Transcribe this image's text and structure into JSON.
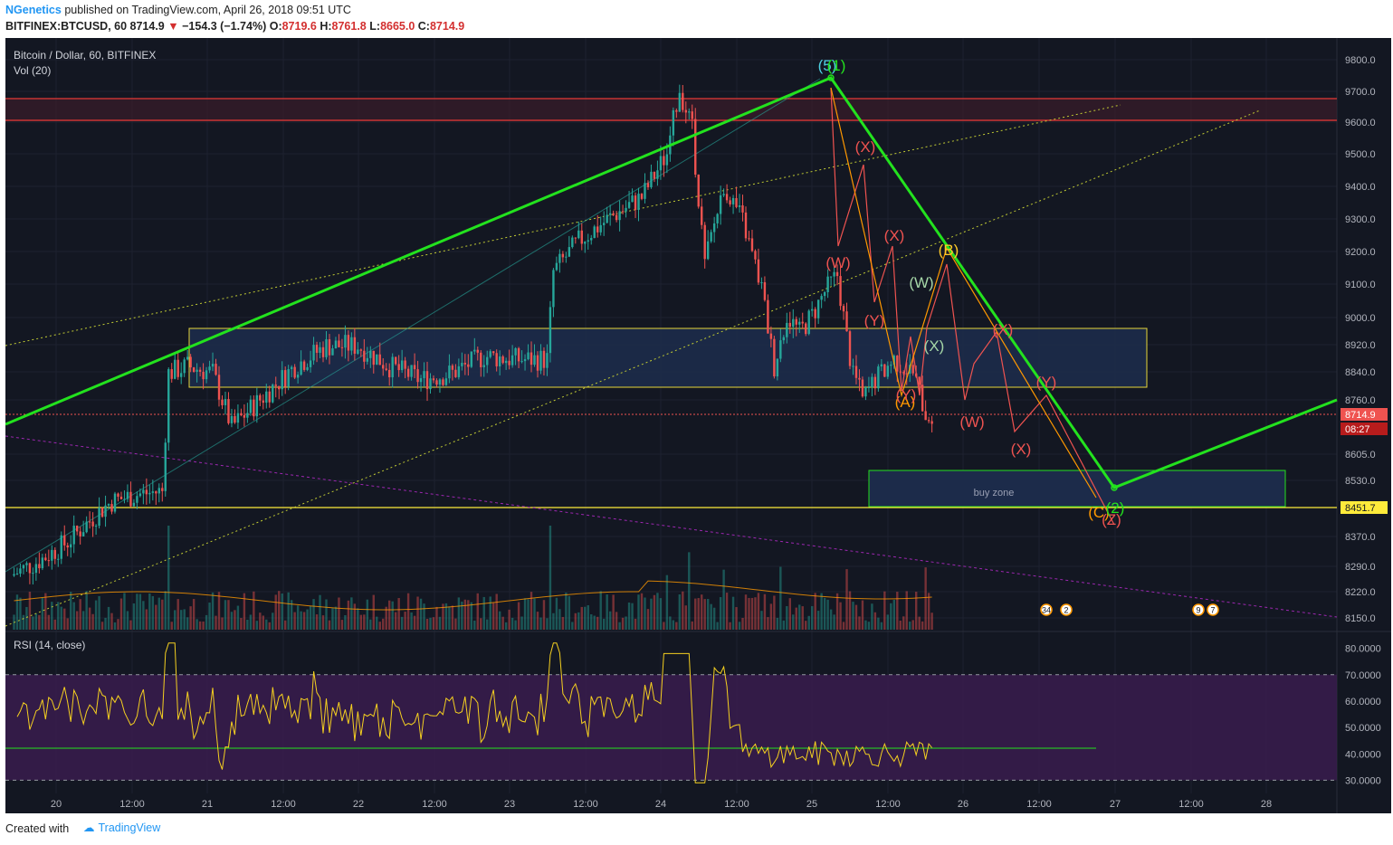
{
  "header": {
    "author": "NGenetics",
    "published": "published on TradingView.com, April 26, 2018 09:51 UTC",
    "symbol": "BITFINEX:BTCUSD, 60",
    "price": "8714.9",
    "change": "−154.3 (−1.74%)",
    "o_label": "O:",
    "o": "8719.6",
    "h_label": "H:",
    "h": "8761.8",
    "l_label": "L:",
    "l": "8665.0",
    "c_label": "C:",
    "c": "8714.9"
  },
  "footer": {
    "created_with": "Created with",
    "brand": "TradingView"
  },
  "colors": {
    "background": "#131722",
    "up": "#26a69a",
    "down": "#ef5350",
    "trendline": "#23e21e",
    "zone_border": "#ffeb3b",
    "zone_fill": "#1c2b4a",
    "resistance": "#e53935",
    "rsi": "#f5d020",
    "rsi_band": "#3a1c4e",
    "volume_ma": "#ff9800"
  },
  "chart_data": {
    "type": "candlestick",
    "title": "Bitcoin / Dollar, 60, BITFINEX",
    "volume_label": "Vol (20)",
    "rsi_label": "RSI (14, close)",
    "price_ylim": [
      8120,
      9850
    ],
    "price_ticks": [
      "9800.0",
      "9700.0",
      "9600.0",
      "9500.0",
      "9400.0",
      "9300.0",
      "9200.0",
      "9100.0",
      "9000.0",
      "8920.0",
      "8840.0",
      "8760.0",
      "8605.0",
      "8530.0",
      "8370.0",
      "8290.0",
      "8220.0",
      "8150.0"
    ],
    "current_price_label": "8714.9",
    "countdown_label": "08:27",
    "support_label": "8451.7",
    "rsi_ylim": [
      25,
      85
    ],
    "rsi_ticks": [
      "80.0000",
      "70.0000",
      "60.0000",
      "50.0000",
      "40.0000",
      "30.0000"
    ],
    "x_ticks": [
      "20",
      "12:00",
      "21",
      "12:00",
      "22",
      "12:00",
      "23",
      "12:00",
      "24",
      "12:00",
      "25",
      "12:00",
      "26",
      "12:00",
      "27",
      "12:00",
      "28"
    ],
    "annotations": {
      "buy_zone": "buy zone",
      "wave_labels": [
        {
          "text": "(5)",
          "color": "#4dd0e1"
        },
        {
          "text": "(1)",
          "color": "#23e21e"
        },
        {
          "text": "(X)",
          "color": "#ef5350"
        },
        {
          "text": "(W)",
          "color": "#ef5350"
        },
        {
          "text": "(X)",
          "color": "#ef5350"
        },
        {
          "text": "(Y)",
          "color": "#ef5350"
        },
        {
          "text": "(W)",
          "color": "#a5d6a7"
        },
        {
          "text": "(X)",
          "color": "#a5d6a7"
        },
        {
          "text": "(A)",
          "color": "#ff9800"
        },
        {
          "text": "(Y)",
          "color": "#ef5350"
        },
        {
          "text": "(B)",
          "color": "#ffca28"
        },
        {
          "text": "(X)",
          "color": "#ef5350"
        },
        {
          "text": "(W)",
          "color": "#ef5350"
        },
        {
          "text": "(X)",
          "color": "#ef5350"
        },
        {
          "text": "(Y)",
          "color": "#ef5350"
        },
        {
          "text": "(C)",
          "color": "#ff9800"
        },
        {
          "text": "(Z)",
          "color": "#ef5350"
        },
        {
          "text": "(2)",
          "color": "#23e21e"
        }
      ],
      "event_badges": [
        "34",
        "2",
        "9",
        "7"
      ]
    }
  }
}
